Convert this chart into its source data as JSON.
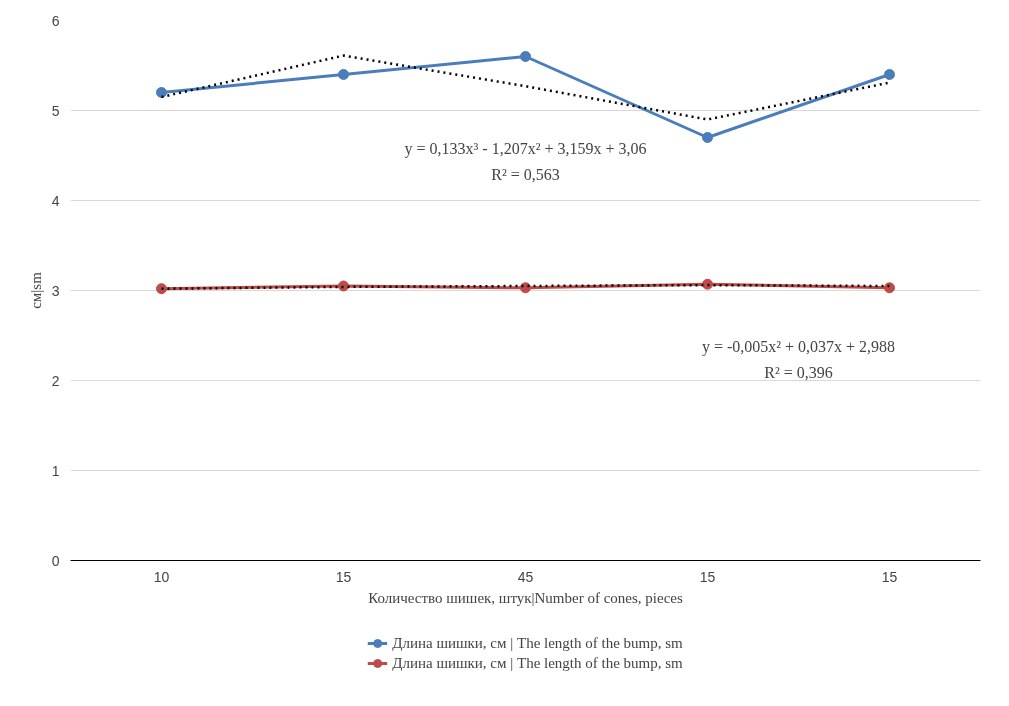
{
  "chart_data": {
    "type": "line",
    "xlabel": "Количество шишек, штук|Number of cones, pieces",
    "ylabel": "см|sm",
    "categories": [
      "10",
      "15",
      "45",
      "15",
      "15"
    ],
    "series": [
      {
        "name": "Длина шишки, см | The length of the bump, sm",
        "color": "#4a7ebb",
        "values": [
          5.2,
          5.4,
          5.6,
          4.7,
          5.4
        ]
      },
      {
        "name": "Длина шишки, см | The length of the bump, sm",
        "color": "#be4b48",
        "values": [
          3.02,
          3.05,
          3.03,
          3.07,
          3.03
        ]
      },
      {
        "type": "line",
        "color": "#000000",
        "marker": "none",
        "line_style": "dotted",
        "values": [
          5.15,
          5.61,
          5.27,
          4.9,
          5.31
        ]
      },
      {
        "type": "line",
        "color": "#000000",
        "marker": "none",
        "line_style": "dotted",
        "values": [
          3.02,
          3.04,
          3.05,
          3.06,
          3.05
        ]
      }
    ],
    "ylim": [
      0,
      6
    ],
    "yticks": [
      0,
      1,
      2,
      3,
      4,
      5,
      6
    ],
    "grid": "y",
    "legend": "bottom",
    "marker": "circle",
    "line_style": "solid",
    "annotations": [
      "y = 0,133x³ - 1,207x² + 3,159x + 3,06",
      "R² = 0,563",
      "y = -0,005x² + 0,037x + 2,988",
      "R² = 0,396"
    ]
  }
}
